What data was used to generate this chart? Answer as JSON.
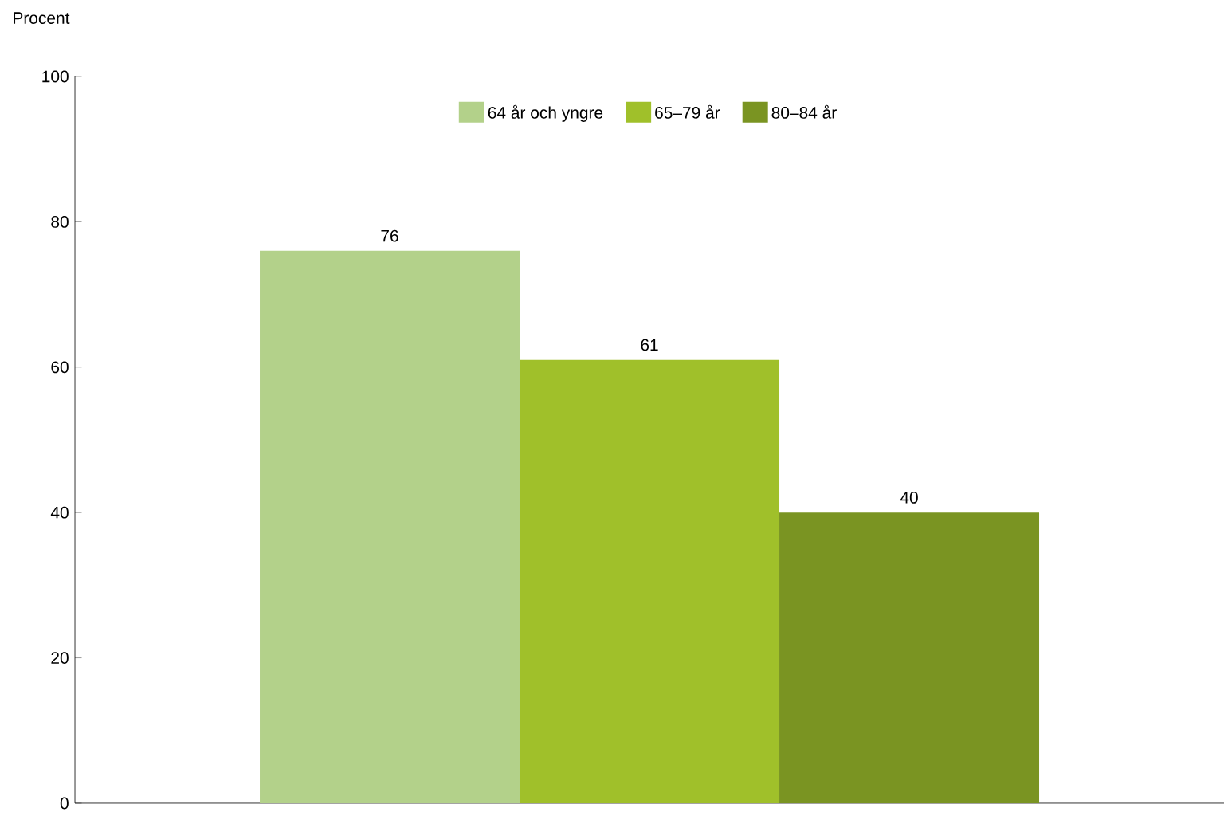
{
  "chart_data": {
    "type": "bar",
    "ylabel": "Procent",
    "categories": [
      null
    ],
    "series": [
      {
        "name": "64 år och yngre",
        "color": "#b3d18a",
        "values": [
          76
        ]
      },
      {
        "name": "65–79 år",
        "color": "#a0c02a",
        "values": [
          61
        ]
      },
      {
        "name": "80–84 år",
        "color": "#7a9422",
        "values": [
          40
        ]
      }
    ],
    "ylim": [
      0,
      100
    ],
    "yticks": [
      0,
      20,
      40,
      60,
      80,
      100
    ],
    "data_labels": true,
    "legend": "top",
    "grid": false
  }
}
